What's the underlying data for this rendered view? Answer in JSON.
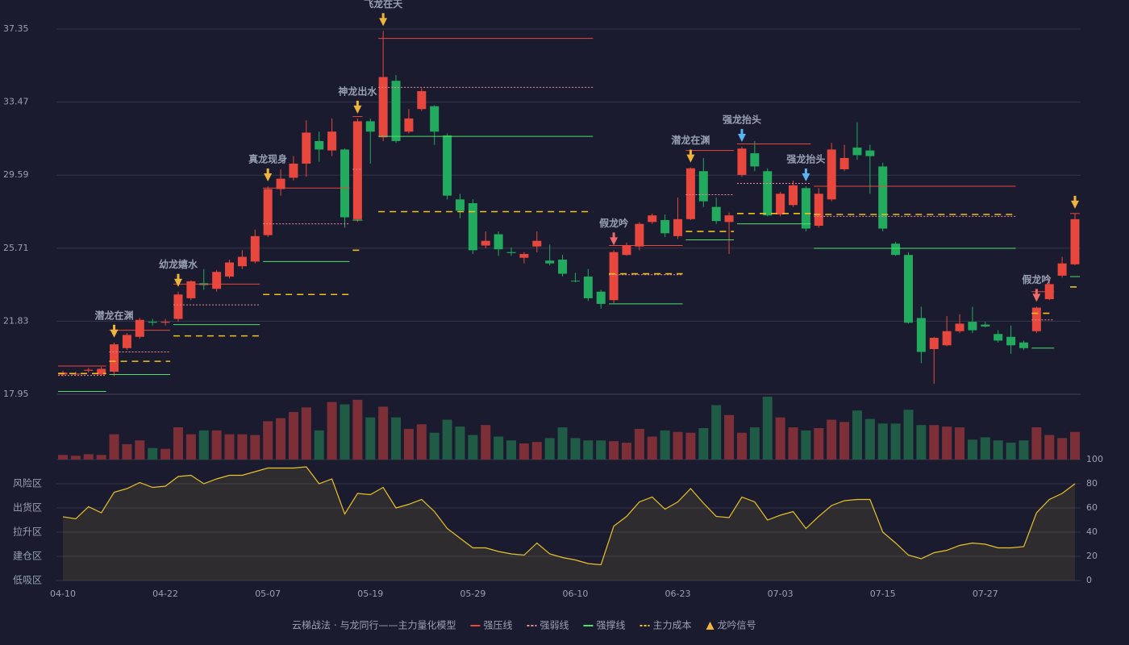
{
  "chart_data": {
    "type": "candlestick",
    "categories": [
      "04-10",
      null,
      null,
      null,
      null,
      null,
      null,
      null,
      "04-22",
      null,
      null,
      null,
      null,
      null,
      null,
      null,
      "05-07",
      null,
      null,
      null,
      null,
      null,
      null,
      null,
      "05-19",
      null,
      null,
      null,
      null,
      null,
      null,
      null,
      "05-29",
      null,
      null,
      null,
      null,
      null,
      null,
      null,
      "06-10",
      null,
      null,
      null,
      null,
      null,
      null,
      null,
      "06-23",
      null,
      null,
      null,
      null,
      null,
      null,
      null,
      "07-03",
      null,
      null,
      null,
      null,
      null,
      null,
      null,
      "07-15",
      null,
      null,
      null,
      null,
      null,
      null,
      null,
      "07-27",
      null,
      null,
      null,
      null,
      null,
      null,
      null
    ],
    "open": [
      19.0,
      19.0,
      19.2,
      19.0,
      19.15,
      20.4,
      21.0,
      21.8,
      21.75,
      21.95,
      23.05,
      23.85,
      23.55,
      24.2,
      24.75,
      25.0,
      26.4,
      28.85,
      29.45,
      30.2,
      31.4,
      30.9,
      30.95,
      27.25,
      32.45,
      31.6,
      34.6,
      31.9,
      33.1,
      33.25,
      31.7,
      28.3,
      28.1,
      25.85,
      26.45,
      25.5,
      25.2,
      25.8,
      25.05,
      25.1,
      23.98,
      24.2,
      23.4,
      22.95,
      25.35,
      25.8,
      27.1,
      27.2,
      26.35,
      27.25,
      29.8,
      27.9,
      27.1,
      29.6,
      30.75,
      29.8,
      27.5,
      28.0,
      28.9,
      26.9,
      28.3,
      29.9,
      31.05,
      30.9,
      30.05,
      25.95,
      25.35,
      22.0,
      20.35,
      20.55,
      21.3,
      21.8,
      21.65,
      21.15,
      21.0,
      20.7,
      21.3,
      23.0,
      24.25,
      24.85
    ],
    "high": [
      19.2,
      19.15,
      19.35,
      19.4,
      20.7,
      21.2,
      22.0,
      21.95,
      21.95,
      23.4,
      24.0,
      24.6,
      24.55,
      25.1,
      25.6,
      26.7,
      29.0,
      29.9,
      30.6,
      32.5,
      31.9,
      32.6,
      31.0,
      32.6,
      32.6,
      37.25,
      34.9,
      33.1,
      34.2,
      33.3,
      31.8,
      28.6,
      28.3,
      26.6,
      26.6,
      25.75,
      25.5,
      26.6,
      25.9,
      25.35,
      24.4,
      24.6,
      23.5,
      25.6,
      26.0,
      27.1,
      27.55,
      27.5,
      28.4,
      30.0,
      30.5,
      28.4,
      27.6,
      31.1,
      31.4,
      29.95,
      28.7,
      29.3,
      29.0,
      28.9,
      31.3,
      31.2,
      32.4,
      31.2,
      30.25,
      26.05,
      25.5,
      22.6,
      21.0,
      22.1,
      22.2,
      22.6,
      21.8,
      21.35,
      21.6,
      20.8,
      22.6,
      24.2,
      25.25,
      27.55
    ],
    "low": [
      18.9,
      18.95,
      19.1,
      18.95,
      18.9,
      20.3,
      20.9,
      21.6,
      21.6,
      21.8,
      22.95,
      23.5,
      23.4,
      24.1,
      24.6,
      24.9,
      26.3,
      28.5,
      29.3,
      29.5,
      30.3,
      30.6,
      26.8,
      27.1,
      30.2,
      31.4,
      31.3,
      31.8,
      33.0,
      31.2,
      28.3,
      27.3,
      25.4,
      25.7,
      25.3,
      25.3,
      24.9,
      25.5,
      24.8,
      24.2,
      23.9,
      22.9,
      22.5,
      22.8,
      25.3,
      25.6,
      27.0,
      26.3,
      26.2,
      27.2,
      27.9,
      27.0,
      25.4,
      29.5,
      29.8,
      27.4,
      27.4,
      27.9,
      26.6,
      26.8,
      28.2,
      29.8,
      30.4,
      28.6,
      26.6,
      25.3,
      21.7,
      19.6,
      18.5,
      20.5,
      21.2,
      21.2,
      21.5,
      20.7,
      20.1,
      20.3,
      21.2,
      22.95,
      24.15,
      24.8
    ],
    "close": [
      19.1,
      19.05,
      19.25,
      19.3,
      20.6,
      21.1,
      21.9,
      21.75,
      21.8,
      23.25,
      23.95,
      23.75,
      24.45,
      24.95,
      25.25,
      26.35,
      28.85,
      29.4,
      30.2,
      31.85,
      30.95,
      31.9,
      27.35,
      32.45,
      31.9,
      34.8,
      31.4,
      32.6,
      34.05,
      31.9,
      28.5,
      27.7,
      25.6,
      26.1,
      25.65,
      25.45,
      25.4,
      26.1,
      24.9,
      24.35,
      23.95,
      23.05,
      22.75,
      25.5,
      25.85,
      27.0,
      27.45,
      26.5,
      27.25,
      29.95,
      28.2,
      27.15,
      27.45,
      31.0,
      30.05,
      27.45,
      28.6,
      29.05,
      26.75,
      28.6,
      30.95,
      30.5,
      30.65,
      30.6,
      26.75,
      25.35,
      21.75,
      20.2,
      20.95,
      21.3,
      21.7,
      21.35,
      21.55,
      20.8,
      20.55,
      20.4,
      22.55,
      23.8,
      24.9,
      27.25
    ],
    "up_color": "#e8473e",
    "down_color": "#22ab5e",
    "volume_up_color": "#7c2f37",
    "volume_down_color": "#1f5b45",
    "ylim": [
      17.95,
      37.35
    ],
    "yticks": [
      17.95,
      21.83,
      25.71,
      29.59,
      33.47,
      37.35
    ],
    "grid": true,
    "volume": [
      6,
      5,
      7,
      6,
      33,
      20,
      25,
      15,
      14,
      42,
      33,
      38,
      38,
      33,
      33,
      32,
      50,
      54,
      62,
      68,
      38,
      75,
      72,
      78,
      55,
      69,
      55,
      40,
      46,
      35,
      52,
      43,
      32,
      45,
      30,
      25,
      21,
      23,
      28,
      42,
      28,
      25,
      25,
      24,
      22,
      40,
      30,
      38,
      36,
      35,
      41,
      71,
      58,
      35,
      42,
      82,
      55,
      42,
      38,
      41,
      52,
      49,
      64,
      53,
      47,
      47,
      65,
      45,
      45,
      43,
      42,
      26,
      29,
      25,
      22,
      25,
      42,
      32,
      28,
      36
    ],
    "oscillator": {
      "values": [
        52.7,
        51,
        61,
        56,
        73,
        76,
        81,
        77,
        78,
        86,
        87,
        80,
        84,
        87,
        87,
        90,
        93,
        93,
        93,
        94,
        80,
        84,
        55,
        72,
        71,
        77,
        60,
        63,
        67,
        57,
        43,
        35,
        27,
        27,
        24,
        22,
        21,
        31,
        22,
        19,
        17,
        14,
        13,
        45,
        53,
        65,
        69,
        59,
        65,
        76,
        64,
        53,
        52,
        69,
        65,
        50,
        54,
        57,
        43,
        53,
        62,
        66,
        67,
        67,
        40,
        31,
        21,
        18,
        23,
        25,
        29,
        31,
        30,
        27,
        27,
        28,
        56,
        67,
        72,
        80
      ],
      "color": "#e8c22a",
      "ylim": [
        0,
        100
      ],
      "yticks": [
        0,
        20,
        40,
        60,
        80,
        100
      ],
      "ytick_colors": [
        "#f04a5a",
        "#f07a4a",
        "#4a8af0",
        "#e040e0",
        "#f0b43c",
        "#3ee05a"
      ],
      "zones": [
        {
          "label": "低吸区",
          "color": "#f04a5a"
        },
        {
          "label": "建仓区",
          "color": "#f06a4a"
        },
        {
          "label": "拉升区",
          "color": "#4a8af0"
        },
        {
          "label": "出货区",
          "color": "#e040e0"
        },
        {
          "label": "风险区",
          "color": "#f0b43c"
        }
      ]
    },
    "levels": [
      {
        "name": "强压线",
        "color": "#e8473e",
        "style": "solid",
        "segments": [
          {
            "start": 0,
            "end": 3,
            "value": 19.45
          },
          {
            "start": 4,
            "end": 8,
            "value": 21.35
          },
          {
            "start": 9,
            "end": 15,
            "value": 23.8
          },
          {
            "start": 16,
            "end": 22,
            "value": 28.9
          },
          {
            "start": 23,
            "end": 23,
            "value": 32.7
          },
          {
            "start": 25,
            "end": 41,
            "value": 36.85
          },
          {
            "start": 43,
            "end": 48,
            "value": 25.85
          },
          {
            "start": 49,
            "end": 52,
            "value": 30.9
          },
          {
            "start": 53,
            "end": 58,
            "value": 31.25
          },
          {
            "start": 59,
            "end": 74,
            "value": 29.0
          },
          {
            "start": 76,
            "end": 77,
            "value": 23.4
          },
          {
            "start": 79,
            "end": 79,
            "value": 27.55
          }
        ]
      },
      {
        "name": "强弱线",
        "color": "#f08a9a",
        "style": "dotted",
        "segments": [
          {
            "start": 0,
            "end": 3,
            "value": 18.95
          },
          {
            "start": 4,
            "end": 8,
            "value": 20.2
          },
          {
            "start": 9,
            "end": 15,
            "value": 22.7
          },
          {
            "start": 16,
            "end": 22,
            "value": 27.0
          },
          {
            "start": 23,
            "end": 23,
            "value": 29.9
          },
          {
            "start": 25,
            "end": 41,
            "value": 34.25
          },
          {
            "start": 43,
            "end": 48,
            "value": 24.3
          },
          {
            "start": 49,
            "end": 52,
            "value": 28.55
          },
          {
            "start": 53,
            "end": 58,
            "value": 29.15
          },
          {
            "start": 59,
            "end": 74,
            "value": 27.4
          },
          {
            "start": 76,
            "end": 77,
            "value": 21.9
          }
        ]
      },
      {
        "name": "强撑线",
        "color": "#4ee06a",
        "style": "solid",
        "segments": [
          {
            "start": 0,
            "end": 3,
            "value": 18.1
          },
          {
            "start": 4,
            "end": 8,
            "value": 19.0
          },
          {
            "start": 9,
            "end": 15,
            "value": 21.65
          },
          {
            "start": 16,
            "end": 22,
            "value": 25.0
          },
          {
            "start": 23,
            "end": 23,
            "value": 27.2
          },
          {
            "start": 25,
            "end": 41,
            "value": 31.65
          },
          {
            "start": 43,
            "end": 48,
            "value": 22.75
          },
          {
            "start": 49,
            "end": 52,
            "value": 26.15
          },
          {
            "start": 53,
            "end": 58,
            "value": 27.0
          },
          {
            "start": 59,
            "end": 74,
            "value": 25.7
          },
          {
            "start": 76,
            "end": 77,
            "value": 20.4
          },
          {
            "start": 79,
            "end": 79,
            "value": 24.2
          }
        ]
      },
      {
        "name": "主力成本",
        "color": "#f0c020",
        "style": "dashed",
        "segments": [
          {
            "start": 0,
            "end": 3,
            "value": 19.05
          },
          {
            "start": 4,
            "end": 8,
            "value": 19.7
          },
          {
            "start": 9,
            "end": 15,
            "value": 21.05
          },
          {
            "start": 16,
            "end": 22,
            "value": 23.25
          },
          {
            "start": 23,
            "end": 23,
            "value": 25.6
          },
          {
            "start": 25,
            "end": 41,
            "value": 27.65
          },
          {
            "start": 43,
            "end": 48,
            "value": 24.35
          },
          {
            "start": 49,
            "end": 52,
            "value": 26.6
          },
          {
            "start": 53,
            "end": 58,
            "value": 27.55
          },
          {
            "start": 59,
            "end": 74,
            "value": 27.5
          },
          {
            "start": 76,
            "end": 77,
            "value": 22.25
          },
          {
            "start": 79,
            "end": 79,
            "value": 23.65
          }
        ]
      }
    ],
    "signals": [
      {
        "at": 4,
        "label": "潜龙在渊",
        "color": "#f0b43c"
      },
      {
        "at": 9,
        "label": "幼龙嬉水",
        "color": "#f0b43c"
      },
      {
        "at": 16,
        "label": "真龙现身",
        "color": "#f0b43c"
      },
      {
        "at": 23,
        "label": "神龙出水",
        "color": "#f0b43c"
      },
      {
        "at": 25,
        "label": "飞龙在天",
        "color": "#f0b43c"
      },
      {
        "at": 43,
        "label": "假龙吟",
        "color": "#f06a6a"
      },
      {
        "at": 49,
        "label": "潜龙在渊",
        "color": "#f0b43c"
      },
      {
        "at": 53,
        "label": "强龙抬头",
        "color": "#5ab4f0"
      },
      {
        "at": 58,
        "label": "强龙抬头",
        "color": "#5ab4f0"
      },
      {
        "at": 76,
        "label": "假龙吟",
        "color": "#f06a6a"
      },
      {
        "at": 79,
        "color": "#f0b43c"
      }
    ],
    "legend_title": "云梯战法 · 与龙同行——主力量化模型",
    "signal_legend": "龙吟信号"
  }
}
